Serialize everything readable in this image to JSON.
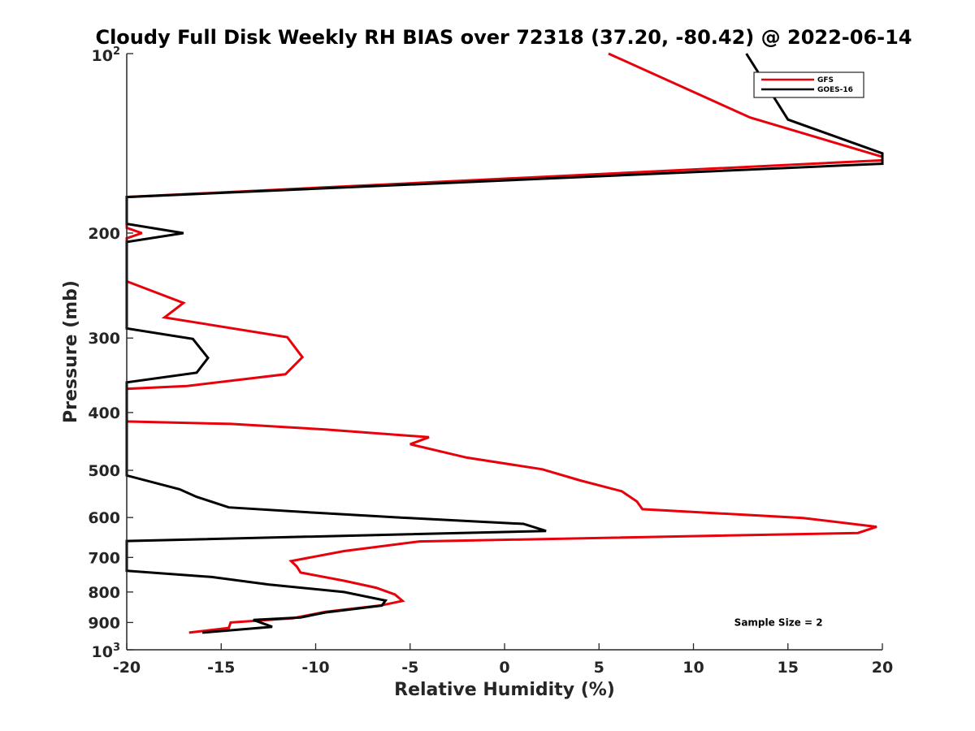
{
  "chart_data": {
    "type": "line",
    "title": "Cloudy Full Disk Weekly RH BIAS over 72318 (37.20, -80.42) @ 2022-06-14",
    "xlabel": "Relative Humidity (%)",
    "ylabel": "Pressure (mb)",
    "xlim": [
      -20,
      20
    ],
    "ylim": [
      100,
      1000
    ],
    "y_scale": "log",
    "y_reversed": true,
    "grid": false,
    "legend_position": "top-right",
    "x_ticks": [
      -20,
      -15,
      -10,
      -5,
      0,
      5,
      10,
      15,
      20
    ],
    "x_tick_labels": [
      "-20",
      "-15",
      "-10",
      "-5",
      "0",
      "5",
      "10",
      "15",
      "20"
    ],
    "y_ticks": [
      {
        "value": 100,
        "label": "10",
        "sup": "2"
      },
      {
        "value": 200,
        "label": "200",
        "sup": ""
      },
      {
        "value": 300,
        "label": "300",
        "sup": ""
      },
      {
        "value": 400,
        "label": "400",
        "sup": ""
      },
      {
        "value": 500,
        "label": "500",
        "sup": ""
      },
      {
        "value": 600,
        "label": "600",
        "sup": ""
      },
      {
        "value": 700,
        "label": "700",
        "sup": ""
      },
      {
        "value": 800,
        "label": "800",
        "sup": ""
      },
      {
        "value": 900,
        "label": "900",
        "sup": ""
      },
      {
        "value": 1000,
        "label": "10",
        "sup": "3"
      }
    ],
    "series": [
      {
        "name": "GFS",
        "color": "#e8000b",
        "points": [
          [
            5.5,
            100
          ],
          [
            13.0,
            128
          ],
          [
            20.0,
            149
          ],
          [
            20.0,
            151
          ],
          [
            -20.0,
            174
          ],
          [
            -20.0,
            196
          ],
          [
            -19.2,
            200
          ],
          [
            -20.0,
            204
          ],
          [
            -20.0,
            241
          ],
          [
            -17.0,
            262
          ],
          [
            -18.0,
            277
          ],
          [
            -11.5,
            299
          ],
          [
            -10.7,
            323
          ],
          [
            -11.6,
            345
          ],
          [
            -16.8,
            361
          ],
          [
            -20.0,
            365
          ],
          [
            -20.0,
            414
          ],
          [
            -14.5,
            418
          ],
          [
            -9.5,
            427
          ],
          [
            -4.0,
            440
          ],
          [
            -5.0,
            452
          ],
          [
            -2.0,
            476
          ],
          [
            2.0,
            498
          ],
          [
            4.0,
            520
          ],
          [
            6.2,
            542
          ],
          [
            7.0,
            564
          ],
          [
            7.3,
            581
          ],
          [
            15.8,
            601
          ],
          [
            19.7,
            622
          ],
          [
            18.7,
            637
          ],
          [
            -4.5,
            658
          ],
          [
            -8.5,
            683
          ],
          [
            -11.3,
            710
          ],
          [
            -11.0,
            725
          ],
          [
            -10.8,
            742
          ],
          [
            -8.5,
            766
          ],
          [
            -6.8,
            787
          ],
          [
            -5.8,
            808
          ],
          [
            -5.4,
            828
          ],
          [
            -6.5,
            842
          ],
          [
            -9.5,
            864
          ],
          [
            -11.2,
            885
          ],
          [
            -14.5,
            900
          ],
          [
            -14.6,
            919
          ],
          [
            -16.7,
            936
          ]
        ]
      },
      {
        "name": "GOES-16",
        "color": "#000000",
        "points": [
          [
            12.8,
            100
          ],
          [
            15.0,
            129
          ],
          [
            20.0,
            147
          ],
          [
            20.0,
            153
          ],
          [
            -20.0,
            174
          ],
          [
            -20.0,
            193
          ],
          [
            -17.0,
            200
          ],
          [
            -20.0,
            207
          ],
          [
            -20.0,
            289
          ],
          [
            -16.5,
            301
          ],
          [
            -15.7,
            324
          ],
          [
            -16.3,
            343
          ],
          [
            -20.0,
            356
          ],
          [
            -20.0,
            510
          ],
          [
            -17.2,
            538
          ],
          [
            -16.3,
            554
          ],
          [
            -14.6,
            577
          ],
          [
            -10.0,
            589
          ],
          [
            -5.5,
            600
          ],
          [
            1.0,
            615
          ],
          [
            2.2,
            632
          ],
          [
            -20.0,
            657
          ],
          [
            -20.0,
            737
          ],
          [
            -15.5,
            755
          ],
          [
            -12.5,
            777
          ],
          [
            -8.5,
            800
          ],
          [
            -6.3,
            827
          ],
          [
            -6.5,
            843
          ],
          [
            -9.5,
            866
          ],
          [
            -10.8,
            883
          ],
          [
            -13.3,
            891
          ],
          [
            -12.3,
            915
          ],
          [
            -16.0,
            936
          ]
        ]
      }
    ],
    "legend": [
      {
        "label": "GFS",
        "color": "#e8000b"
      },
      {
        "label": "GOES-16",
        "color": "#000000"
      }
    ],
    "annotations": [
      {
        "text": "Sample Size = 2",
        "x": 14.5,
        "y": 900
      }
    ]
  }
}
